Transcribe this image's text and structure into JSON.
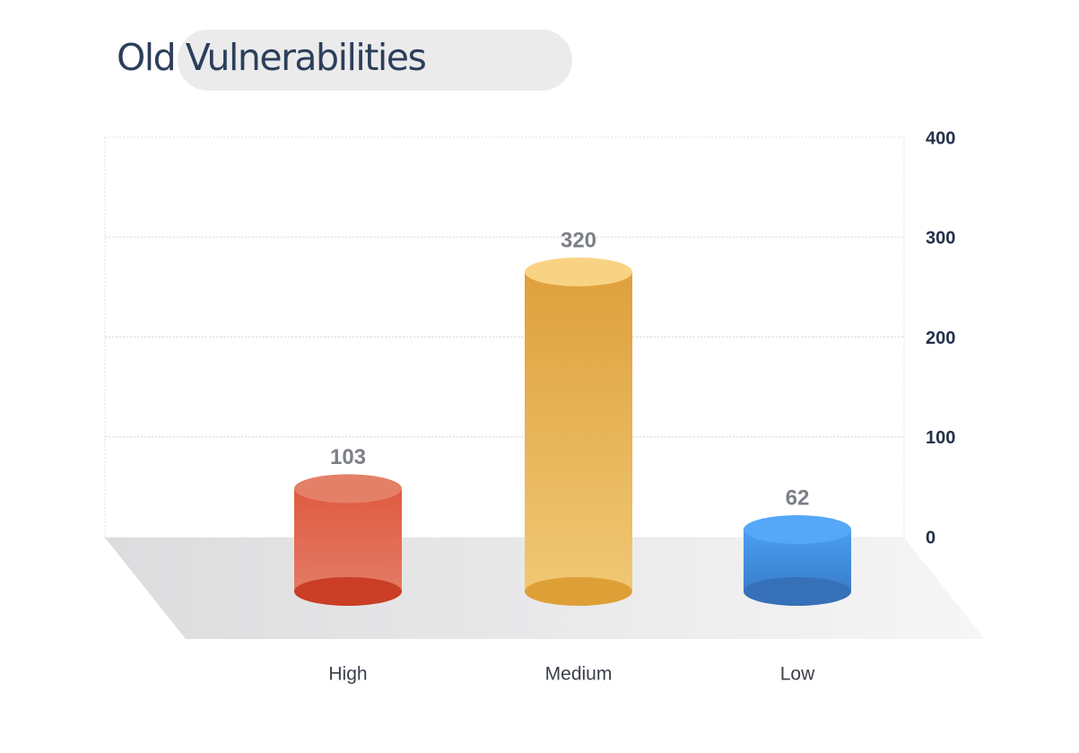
{
  "title": "Old Vulnerabilities",
  "chart_data": {
    "type": "bar",
    "title": "Old Vulnerabilities",
    "categories": [
      "High",
      "Medium",
      "Low"
    ],
    "values": [
      103,
      320,
      62
    ],
    "data_labels": [
      "103",
      "320",
      "62"
    ],
    "colors": [
      "#e2634a",
      "#ecb85a",
      "#3f8fe0"
    ],
    "ylim": [
      0,
      400
    ],
    "yticks": [
      0,
      100,
      200,
      300,
      400
    ],
    "ytick_labels": [
      "0",
      "100",
      "200",
      "300",
      "400"
    ],
    "y_axis_position": "right",
    "grid": true,
    "legend": "none",
    "style": "3d-cylinder"
  }
}
